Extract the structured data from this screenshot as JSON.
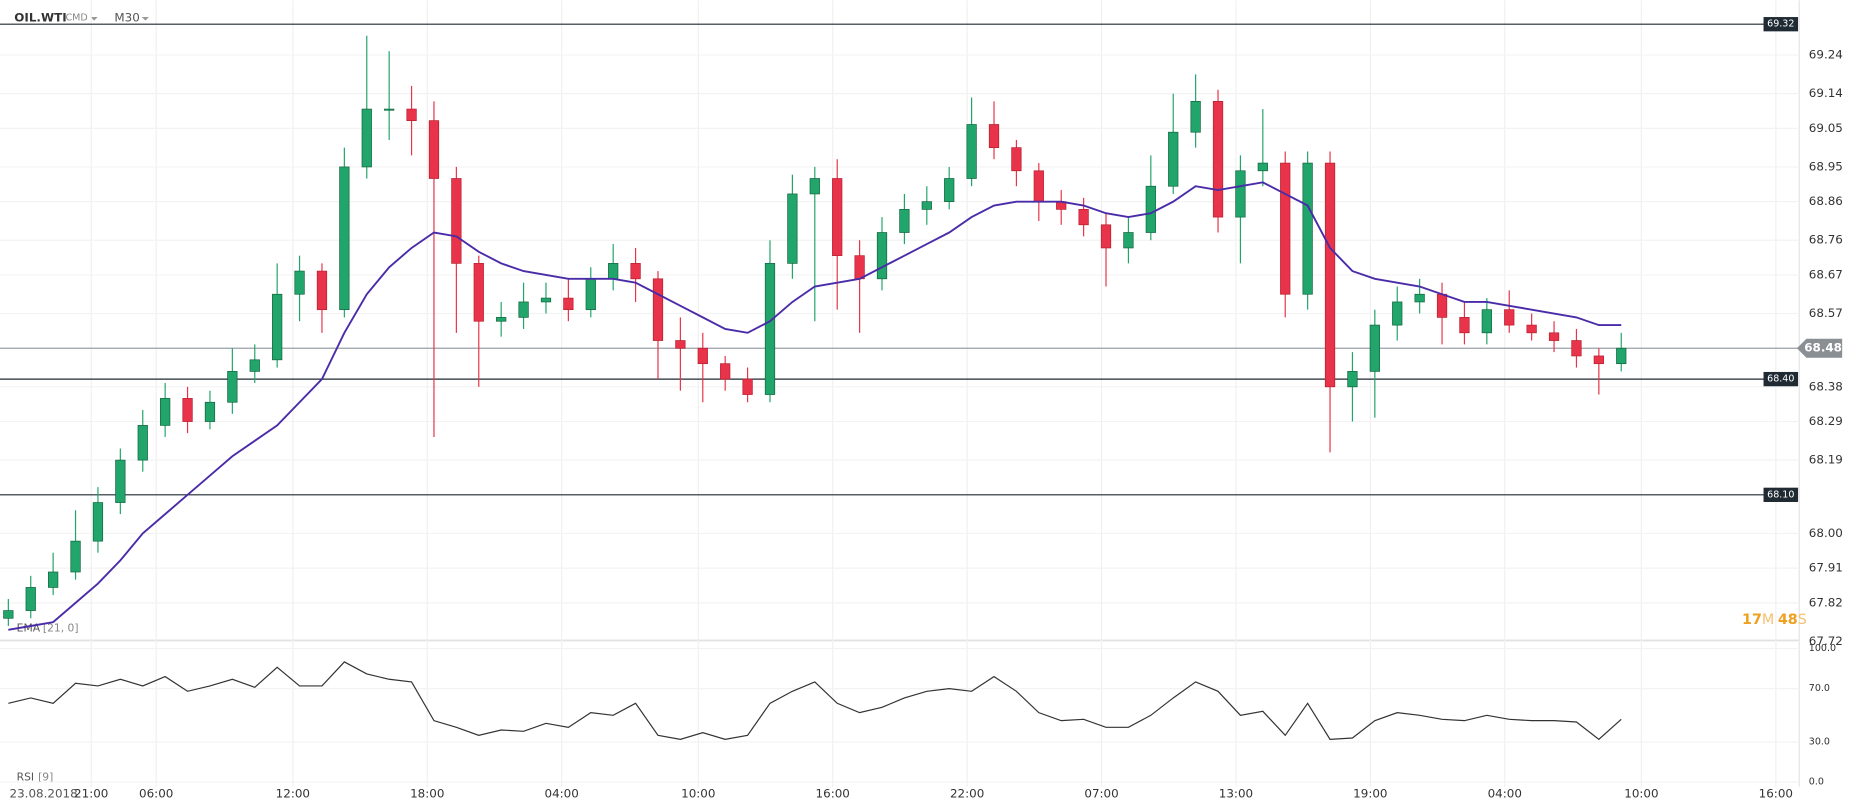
{
  "chart_data": {
    "type": "candlestick",
    "symbol": "OIL.WTI",
    "market": "CMD",
    "interval": "M30",
    "date_label": "23.08.2018",
    "open": [
      67.78,
      67.8,
      67.86,
      67.9,
      67.98,
      68.08,
      68.19,
      68.28,
      68.35,
      68.29,
      68.34,
      68.42,
      68.45,
      68.62,
      68.68,
      68.58,
      68.95,
      69.1,
      69.1,
      69.07,
      68.92,
      68.7,
      68.55,
      68.56,
      68.6,
      68.61,
      68.58,
      68.66,
      68.7,
      68.66,
      68.5,
      68.48,
      68.44,
      68.4,
      68.36,
      68.7,
      68.88,
      68.92,
      68.72,
      68.66,
      68.78,
      68.84,
      68.86,
      68.92,
      69.06,
      69.0,
      68.94,
      68.86,
      68.84,
      68.8,
      68.74,
      68.78,
      68.9,
      69.04,
      69.12,
      68.82,
      68.94,
      68.96,
      68.62,
      68.96,
      68.38,
      68.42,
      68.54,
      68.6,
      68.62,
      68.56,
      68.52,
      68.58,
      68.54,
      68.52,
      68.5,
      68.46,
      68.44
    ],
    "high": [
      67.83,
      67.89,
      67.95,
      68.06,
      68.12,
      68.22,
      68.32,
      68.39,
      68.38,
      68.37,
      68.48,
      68.49,
      68.7,
      68.72,
      68.7,
      69.0,
      69.29,
      69.25,
      69.16,
      69.12,
      68.95,
      68.72,
      68.6,
      68.65,
      68.65,
      68.66,
      68.69,
      68.75,
      68.74,
      68.68,
      68.56,
      68.52,
      68.46,
      68.43,
      68.76,
      68.93,
      68.95,
      68.97,
      68.76,
      68.82,
      68.88,
      68.9,
      68.95,
      69.13,
      69.12,
      69.02,
      68.96,
      68.89,
      68.87,
      68.83,
      68.82,
      68.98,
      69.14,
      69.19,
      69.15,
      68.98,
      69.1,
      68.99,
      68.99,
      68.99,
      68.47,
      68.58,
      68.64,
      68.66,
      68.65,
      68.6,
      68.61,
      68.63,
      68.57,
      68.55,
      68.53,
      68.48,
      68.52
    ],
    "low": [
      67.76,
      67.78,
      67.84,
      67.88,
      67.95,
      68.05,
      68.16,
      68.25,
      68.26,
      68.27,
      68.31,
      68.39,
      68.43,
      68.55,
      68.52,
      68.56,
      68.92,
      69.02,
      68.98,
      68.25,
      68.52,
      68.38,
      68.51,
      68.53,
      68.57,
      68.55,
      68.56,
      68.63,
      68.6,
      68.4,
      68.37,
      68.34,
      68.37,
      68.34,
      68.34,
      68.66,
      68.55,
      68.58,
      68.52,
      68.63,
      68.75,
      68.8,
      68.84,
      68.9,
      68.97,
      68.9,
      68.81,
      68.8,
      68.77,
      68.64,
      68.7,
      68.76,
      68.88,
      69.0,
      68.78,
      68.7,
      68.9,
      68.56,
      68.58,
      68.21,
      68.29,
      68.3,
      68.5,
      68.57,
      68.49,
      68.49,
      68.49,
      68.52,
      68.5,
      68.47,
      68.43,
      68.36,
      68.42
    ],
    "close": [
      67.8,
      67.86,
      67.9,
      67.98,
      68.08,
      68.19,
      68.28,
      68.35,
      68.29,
      68.34,
      68.42,
      68.45,
      68.62,
      68.68,
      68.58,
      68.95,
      69.1,
      69.1,
      69.07,
      68.92,
      68.7,
      68.55,
      68.56,
      68.6,
      68.61,
      68.58,
      68.66,
      68.7,
      68.66,
      68.5,
      68.48,
      68.44,
      68.4,
      68.36,
      68.7,
      68.88,
      68.92,
      68.72,
      68.66,
      68.78,
      68.84,
      68.86,
      68.92,
      69.06,
      69.0,
      68.94,
      68.86,
      68.84,
      68.8,
      68.74,
      68.78,
      68.9,
      69.04,
      69.12,
      68.82,
      68.94,
      68.96,
      68.62,
      68.96,
      68.38,
      68.42,
      68.54,
      68.6,
      68.62,
      68.56,
      68.52,
      68.58,
      68.54,
      68.52,
      68.5,
      68.46,
      68.44,
      68.48
    ],
    "up_color": "#22a56b",
    "down_color": "#e8334a",
    "ema": {
      "name": "EMA",
      "params": "[21, 0]",
      "color": "#4a2ca8",
      "values": [
        67.75,
        67.76,
        67.77,
        67.82,
        67.87,
        67.93,
        68.0,
        68.05,
        68.1,
        68.15,
        68.2,
        68.24,
        68.28,
        68.34,
        68.4,
        68.52,
        68.62,
        68.69,
        68.74,
        68.78,
        68.77,
        68.73,
        68.7,
        68.68,
        68.67,
        68.66,
        68.66,
        68.66,
        68.65,
        68.62,
        68.59,
        68.56,
        68.53,
        68.52,
        68.55,
        68.6,
        68.64,
        68.65,
        68.66,
        68.69,
        68.72,
        68.75,
        68.78,
        68.82,
        68.85,
        68.86,
        68.86,
        68.86,
        68.85,
        68.83,
        68.82,
        68.83,
        68.86,
        68.9,
        68.89,
        68.9,
        68.91,
        68.88,
        68.85,
        68.74,
        68.68,
        68.66,
        68.65,
        68.64,
        68.62,
        68.6,
        68.6,
        68.59,
        68.58,
        68.57,
        68.56,
        68.54,
        68.54
      ]
    },
    "rsi": {
      "name": "RSI",
      "params": "[9]",
      "color": "#333333",
      "values": [
        59,
        63,
        59,
        74,
        72,
        77,
        72,
        79,
        68,
        72,
        77,
        71,
        86,
        72,
        72,
        90,
        81,
        77,
        75,
        46,
        41,
        35,
        39,
        38,
        44,
        41,
        52,
        50,
        59,
        35,
        32,
        37,
        32,
        35,
        59,
        68,
        75,
        59,
        52,
        56,
        63,
        68,
        70,
        68,
        79,
        68,
        52,
        46,
        47,
        41,
        41,
        50,
        63,
        75,
        68,
        50,
        53,
        35,
        59,
        32,
        33,
        46,
        52,
        50,
        47,
        46,
        50,
        47,
        46,
        46,
        45,
        32,
        47
      ],
      "ylim": [
        0,
        100
      ],
      "yticks": [
        {
          "value": 100,
          "label": "100.0"
        },
        {
          "value": 70,
          "label": "70.0"
        },
        {
          "value": 30,
          "label": "30.0"
        },
        {
          "value": 0,
          "label": "0.0"
        }
      ]
    },
    "ylim": [
      67.72,
      69.32
    ],
    "yticks": [
      69.24,
      69.14,
      69.05,
      68.95,
      68.86,
      68.76,
      68.67,
      68.57,
      68.38,
      68.29,
      68.19,
      {
        "value": 68,
        "label": "68.00"
      },
      67.91,
      67.82,
      67.72
    ],
    "levels": [
      69.32,
      {
        "value": 68.4,
        "label": "68.40"
      },
      {
        "value": 68.1,
        "label": "68.10"
      }
    ],
    "last_price": 68.48,
    "xticks": [
      {
        "value": 3.7,
        "label": "21:00"
      },
      {
        "value": 6.6,
        "label": "06:00"
      },
      {
        "value": 12.7,
        "label": "12:00"
      },
      {
        "value": 18.7,
        "label": "18:00"
      },
      {
        "value": 24.7,
        "label": "04:00"
      },
      {
        "value": 30.8,
        "label": "10:00"
      },
      {
        "value": 36.8,
        "label": "16:00"
      },
      {
        "value": 42.8,
        "label": "22:00"
      },
      {
        "value": 48.8,
        "label": "07:00"
      },
      {
        "value": 54.8,
        "label": "13:00"
      },
      {
        "value": 60.8,
        "label": "19:00"
      },
      {
        "value": 66.8,
        "label": "04:00"
      },
      {
        "value": 72.9,
        "label": "10:00"
      },
      {
        "value": 78.9,
        "label": "16:00"
      }
    ],
    "countdown": {
      "minutes": "17",
      "minutes_unit": "M",
      "seconds": "48",
      "seconds_unit": "S"
    }
  }
}
